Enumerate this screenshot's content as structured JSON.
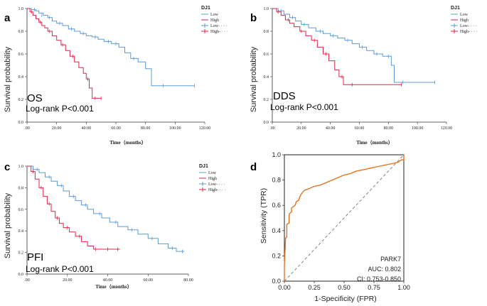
{
  "colors": {
    "low": "#5b9bd5",
    "high": "#e2234a",
    "roc": "#e8731f",
    "diag": "#666666",
    "axis": "#333333"
  },
  "chart_data": [
    {
      "panel": "a",
      "type": "line",
      "subtype": "kaplan-meier",
      "endpoint": "OS",
      "stat_text": "Log-rank   P<0.001",
      "xlabel": "Time（months）",
      "ylabel": "Survival  probability",
      "xlim": [
        0,
        120
      ],
      "ylim": [
        0,
        1
      ],
      "xticks": [
        ".00",
        "20.00",
        "40.00",
        "60.00",
        "80.00",
        "100.00",
        "120.00"
      ],
      "xtick_values": [
        0,
        20,
        40,
        60,
        80,
        100,
        120
      ],
      "yticks": [
        "0.0",
        "0.2",
        "0.4",
        "0.6",
        "0.8",
        "1.0"
      ],
      "ytick_values": [
        0,
        0.2,
        0.4,
        0.6,
        0.8,
        1.0
      ],
      "legend": {
        "title": "DJ1",
        "entries": [
          "Low",
          "High",
          "Low-  ·  ·  ·",
          "High-  ·  ·  ·"
        ]
      },
      "series": [
        {
          "name": "Low",
          "color_key": "low",
          "steps": [
            [
              0,
              1.0
            ],
            [
              3,
              0.99
            ],
            [
              6,
              0.98
            ],
            [
              8,
              0.96
            ],
            [
              11,
              0.94
            ],
            [
              14,
              0.92
            ],
            [
              17,
              0.89
            ],
            [
              20,
              0.87
            ],
            [
              24,
              0.85
            ],
            [
              28,
              0.82
            ],
            [
              32,
              0.8
            ],
            [
              36,
              0.78
            ],
            [
              40,
              0.76
            ],
            [
              44,
              0.75
            ],
            [
              48,
              0.73
            ],
            [
              52,
              0.71
            ],
            [
              57,
              0.69
            ],
            [
              62,
              0.66
            ],
            [
              66,
              0.61
            ],
            [
              70,
              0.56
            ],
            [
              75,
              0.53
            ],
            [
              80,
              0.47
            ],
            [
              84,
              0.32
            ],
            [
              113,
              0.32
            ]
          ],
          "censors": [
            [
              5,
              0.99
            ],
            [
              10,
              0.94
            ],
            [
              15,
              0.92
            ],
            [
              22,
              0.87
            ],
            [
              30,
              0.82
            ],
            [
              38,
              0.78
            ],
            [
              46,
              0.75
            ],
            [
              55,
              0.71
            ],
            [
              60,
              0.69
            ],
            [
              72,
              0.56
            ],
            [
              92,
              0.32
            ],
            [
              113,
              0.32
            ]
          ]
        },
        {
          "name": "High",
          "color_key": "high",
          "steps": [
            [
              0,
              1.0
            ],
            [
              2,
              0.97
            ],
            [
              4,
              0.94
            ],
            [
              6,
              0.91
            ],
            [
              8,
              0.88
            ],
            [
              10,
              0.85
            ],
            [
              12,
              0.83
            ],
            [
              14,
              0.8
            ],
            [
              17,
              0.76
            ],
            [
              20,
              0.72
            ],
            [
              23,
              0.68
            ],
            [
              26,
              0.63
            ],
            [
              29,
              0.58
            ],
            [
              32,
              0.53
            ],
            [
              35,
              0.48
            ],
            [
              38,
              0.43
            ],
            [
              40,
              0.38
            ],
            [
              42,
              0.3
            ],
            [
              44,
              0.21
            ],
            [
              50,
              0.21
            ]
          ],
          "censors": [
            [
              3,
              0.97
            ],
            [
              9,
              0.88
            ],
            [
              15,
              0.8
            ],
            [
              24,
              0.68
            ],
            [
              31,
              0.58
            ],
            [
              41,
              0.38
            ],
            [
              46,
              0.21
            ],
            [
              50,
              0.21
            ]
          ]
        }
      ]
    },
    {
      "panel": "b",
      "type": "line",
      "subtype": "kaplan-meier",
      "endpoint": "DDS",
      "stat_text": "Log-rank    P<0.001",
      "xlabel": "Time（months）",
      "ylabel": "Survival  probability",
      "xlim": [
        0,
        120
      ],
      "ylim": [
        0,
        1
      ],
      "xticks": [
        ".00",
        "20.00",
        "40.00",
        "60.00",
        "80.00",
        "100.00",
        "120.00"
      ],
      "xtick_values": [
        0,
        20,
        40,
        60,
        80,
        100,
        120
      ],
      "yticks": [
        "0.0",
        "0.2",
        "0.4",
        "0.6",
        "0.8",
        "1.0"
      ],
      "ytick_values": [
        0,
        0.2,
        0.4,
        0.6,
        0.8,
        1.0
      ],
      "legend": {
        "title": "DJ1",
        "entries": [
          "Low",
          "High",
          "Low-  ·  ·  ·",
          "High-  ·  ·  ·"
        ]
      },
      "series": [
        {
          "name": "Low",
          "color_key": "low",
          "steps": [
            [
              0,
              1.0
            ],
            [
              4,
              0.98
            ],
            [
              8,
              0.95
            ],
            [
              12,
              0.92
            ],
            [
              16,
              0.89
            ],
            [
              20,
              0.86
            ],
            [
              25,
              0.83
            ],
            [
              30,
              0.8
            ],
            [
              35,
              0.78
            ],
            [
              40,
              0.76
            ],
            [
              45,
              0.74
            ],
            [
              50,
              0.72
            ],
            [
              55,
              0.69
            ],
            [
              60,
              0.66
            ],
            [
              65,
              0.63
            ],
            [
              70,
              0.6
            ],
            [
              76,
              0.58
            ],
            [
              82,
              0.5
            ],
            [
              84,
              0.35
            ],
            [
              112,
              0.35
            ]
          ],
          "censors": [
            [
              6,
              0.98
            ],
            [
              14,
              0.92
            ],
            [
              22,
              0.86
            ],
            [
              33,
              0.8
            ],
            [
              42,
              0.76
            ],
            [
              52,
              0.72
            ],
            [
              62,
              0.66
            ],
            [
              72,
              0.6
            ],
            [
              80,
              0.58
            ],
            [
              90,
              0.35
            ],
            [
              112,
              0.35
            ]
          ]
        },
        {
          "name": "High",
          "color_key": "high",
          "steps": [
            [
              0,
              1.0
            ],
            [
              3,
              0.97
            ],
            [
              6,
              0.94
            ],
            [
              9,
              0.9
            ],
            [
              12,
              0.87
            ],
            [
              15,
              0.84
            ],
            [
              19,
              0.8
            ],
            [
              23,
              0.76
            ],
            [
              27,
              0.72
            ],
            [
              31,
              0.66
            ],
            [
              35,
              0.6
            ],
            [
              39,
              0.54
            ],
            [
              43,
              0.46
            ],
            [
              46,
              0.4
            ],
            [
              49,
              0.33
            ],
            [
              89,
              0.33
            ]
          ],
          "censors": [
            [
              4,
              0.97
            ],
            [
              11,
              0.9
            ],
            [
              20,
              0.8
            ],
            [
              29,
              0.72
            ],
            [
              37,
              0.6
            ],
            [
              48,
              0.4
            ],
            [
              55,
              0.33
            ],
            [
              89,
              0.33
            ]
          ]
        }
      ]
    },
    {
      "panel": "c",
      "type": "line",
      "subtype": "kaplan-meier",
      "endpoint": "PFI",
      "stat_text": "Log-rank    P<0.001",
      "xlabel": "Time（months）",
      "ylabel": "Survival  probability",
      "xlim": [
        0,
        80
      ],
      "ylim": [
        0,
        1
      ],
      "xticks": [
        ".00",
        "20.00",
        "40.00",
        "60.00",
        "80.00"
      ],
      "xtick_values": [
        0,
        20,
        40,
        60,
        80
      ],
      "yticks": [
        "0.0",
        "0.2",
        "0.4",
        "0.6",
        "0.8",
        "1.0"
      ],
      "ytick_values": [
        0,
        0.2,
        0.4,
        0.6,
        0.8,
        1.0
      ],
      "legend": {
        "title": "DJ1",
        "entries": [
          "Low",
          "High",
          "Low-  ·  ·  ·",
          "High-  ·  ·  ·"
        ]
      },
      "series": [
        {
          "name": "Low",
          "color_key": "low",
          "steps": [
            [
              0,
              1.0
            ],
            [
              3,
              0.97
            ],
            [
              6,
              0.94
            ],
            [
              9,
              0.9
            ],
            [
              12,
              0.86
            ],
            [
              15,
              0.82
            ],
            [
              18,
              0.77
            ],
            [
              21,
              0.72
            ],
            [
              24,
              0.68
            ],
            [
              27,
              0.64
            ],
            [
              30,
              0.6
            ],
            [
              33,
              0.56
            ],
            [
              37,
              0.52
            ],
            [
              41,
              0.48
            ],
            [
              45,
              0.44
            ],
            [
              50,
              0.41
            ],
            [
              55,
              0.37
            ],
            [
              60,
              0.33
            ],
            [
              65,
              0.28
            ],
            [
              70,
              0.24
            ],
            [
              74,
              0.21
            ],
            [
              78,
              0.21
            ]
          ],
          "censors": [
            [
              5,
              0.97
            ],
            [
              11,
              0.9
            ],
            [
              17,
              0.82
            ],
            [
              23,
              0.72
            ],
            [
              29,
              0.64
            ],
            [
              36,
              0.56
            ],
            [
              44,
              0.48
            ],
            [
              52,
              0.41
            ],
            [
              62,
              0.33
            ],
            [
              72,
              0.24
            ],
            [
              77,
              0.21
            ]
          ]
        },
        {
          "name": "High",
          "color_key": "high",
          "steps": [
            [
              0,
              1.0
            ],
            [
              2,
              0.95
            ],
            [
              4,
              0.88
            ],
            [
              6,
              0.8
            ],
            [
              8,
              0.72
            ],
            [
              10,
              0.65
            ],
            [
              12,
              0.58
            ],
            [
              14,
              0.52
            ],
            [
              16,
              0.47
            ],
            [
              18,
              0.43
            ],
            [
              21,
              0.39
            ],
            [
              24,
              0.35
            ],
            [
              27,
              0.3
            ],
            [
              30,
              0.26
            ],
            [
              33,
              0.23
            ],
            [
              46,
              0.23
            ]
          ],
          "censors": [
            [
              3,
              0.95
            ],
            [
              7,
              0.8
            ],
            [
              11,
              0.65
            ],
            [
              15,
              0.52
            ],
            [
              20,
              0.43
            ],
            [
              26,
              0.35
            ],
            [
              34,
              0.23
            ],
            [
              40,
              0.23
            ],
            [
              45,
              0.23
            ]
          ]
        }
      ]
    },
    {
      "panel": "d",
      "type": "line",
      "subtype": "roc",
      "xlabel": "1-Specificity (FPR)",
      "ylabel": "Sensitivity (TPR)",
      "xlim": [
        0,
        1
      ],
      "ylim": [
        0,
        1
      ],
      "xticks": [
        "0.00",
        "0.25",
        "0.50",
        "0.75",
        "1.00"
      ],
      "xtick_values": [
        0,
        0.25,
        0.5,
        0.75,
        1.0
      ],
      "yticks": [
        "0.0",
        "0.2",
        "0.4",
        "0.6",
        "0.8",
        "1.0"
      ],
      "ytick_values": [
        0,
        0.2,
        0.4,
        0.6,
        0.8,
        1.0
      ],
      "gene": "PARK7",
      "auc_text": "AUC: 0.802",
      "ci_text": "CI: 0.753-0.850",
      "curve": [
        [
          0,
          0
        ],
        [
          0,
          0.12
        ],
        [
          0.01,
          0.34
        ],
        [
          0.02,
          0.35
        ],
        [
          0.02,
          0.45
        ],
        [
          0.04,
          0.46
        ],
        [
          0.04,
          0.53
        ],
        [
          0.06,
          0.55
        ],
        [
          0.06,
          0.58
        ],
        [
          0.09,
          0.6
        ],
        [
          0.1,
          0.63
        ],
        [
          0.12,
          0.64
        ],
        [
          0.13,
          0.67
        ],
        [
          0.15,
          0.7
        ],
        [
          0.17,
          0.72
        ],
        [
          0.2,
          0.73
        ],
        [
          0.25,
          0.75
        ],
        [
          0.3,
          0.76
        ],
        [
          0.35,
          0.78
        ],
        [
          0.4,
          0.8
        ],
        [
          0.45,
          0.82
        ],
        [
          0.5,
          0.84
        ],
        [
          0.55,
          0.85
        ],
        [
          0.6,
          0.87
        ],
        [
          0.65,
          0.88
        ],
        [
          0.7,
          0.89
        ],
        [
          0.75,
          0.9
        ],
        [
          0.8,
          0.91
        ],
        [
          0.85,
          0.92
        ],
        [
          0.9,
          0.93
        ],
        [
          0.95,
          0.94
        ],
        [
          0.98,
          0.96
        ],
        [
          1.0,
          0.96
        ],
        [
          1.0,
          1.0
        ]
      ]
    }
  ]
}
